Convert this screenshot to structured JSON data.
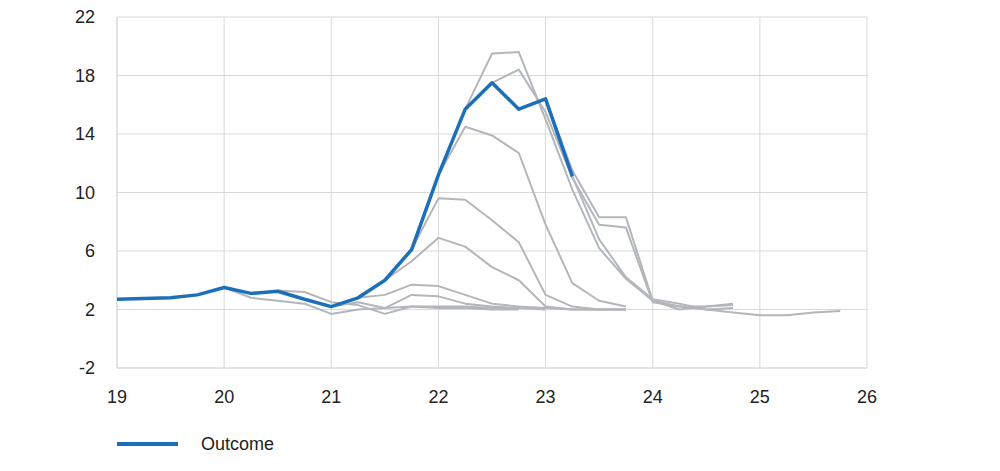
{
  "chart_data": {
    "type": "line",
    "x": [
      19,
      19.25,
      19.5,
      19.75,
      20,
      20.25,
      20.5,
      20.75,
      21,
      21.25,
      21.5,
      21.75,
      22,
      22.25,
      22.5,
      22.75,
      23,
      23.25,
      23.5,
      23.75,
      24,
      24.25,
      24.5,
      24.75,
      25,
      25.25,
      25.5,
      25.75
    ],
    "xlim": [
      19,
      26
    ],
    "xticks": [
      19,
      20,
      21,
      22,
      23,
      24,
      25,
      26
    ],
    "ylim": [
      -2,
      22
    ],
    "yticks": [
      -2,
      2,
      6,
      10,
      14,
      18,
      22
    ],
    "grid": true,
    "legend": "bottom",
    "series": [
      {
        "color": "#b3b6ba",
        "values": [
          null,
          null,
          null,
          null,
          3.5,
          2.8,
          2.6,
          2.4,
          1.7,
          2.0,
          2.1,
          2.2,
          2.1,
          2.1,
          2.0,
          2.0,
          null,
          null,
          null,
          null,
          null,
          null,
          null,
          null,
          null,
          null,
          null,
          null
        ]
      },
      {
        "color": "#b3b6ba",
        "values": [
          null,
          null,
          null,
          null,
          null,
          null,
          3.3,
          3.2,
          2.5,
          2.3,
          1.7,
          2.2,
          2.2,
          2.2,
          2.1,
          2.1,
          null,
          null,
          null,
          null,
          null,
          null,
          null,
          null,
          null,
          null,
          null,
          null
        ]
      },
      {
        "color": "#b3b6ba",
        "values": [
          null,
          null,
          null,
          null,
          null,
          null,
          null,
          null,
          2.2,
          2.5,
          2.1,
          3.0,
          2.9,
          2.4,
          2.2,
          2.1,
          2.0,
          null,
          null,
          null,
          null,
          null,
          null,
          null,
          null,
          null,
          null,
          null
        ]
      },
      {
        "color": "#b3b6ba",
        "values": [
          null,
          null,
          null,
          null,
          null,
          null,
          null,
          null,
          null,
          2.8,
          3.0,
          3.7,
          3.6,
          3.0,
          2.4,
          2.2,
          2.1,
          2.0,
          2.0,
          2.0,
          null,
          null,
          null,
          null,
          null,
          null,
          null,
          null
        ]
      },
      {
        "color": "#b3b6ba",
        "values": [
          null,
          null,
          null,
          null,
          null,
          null,
          null,
          null,
          null,
          null,
          4.0,
          5.3,
          6.9,
          6.3,
          4.9,
          4.0,
          2.2,
          2.0,
          2.0,
          2.0,
          null,
          null,
          null,
          null,
          null,
          null,
          null,
          null
        ]
      },
      {
        "color": "#b3b6ba",
        "values": [
          null,
          null,
          null,
          null,
          null,
          null,
          null,
          null,
          null,
          null,
          null,
          6.1,
          9.6,
          9.5,
          8.1,
          6.6,
          3.0,
          2.2,
          2.0,
          2.0,
          null,
          null,
          null,
          null,
          null,
          null,
          null,
          null
        ]
      },
      {
        "color": "#b3b6ba",
        "values": [
          null,
          null,
          null,
          null,
          null,
          null,
          null,
          null,
          null,
          null,
          null,
          null,
          11.2,
          14.5,
          13.9,
          12.7,
          7.8,
          3.8,
          2.6,
          2.2,
          null,
          null,
          null,
          null,
          null,
          null,
          null,
          null
        ]
      },
      {
        "color": "#b3b6ba",
        "values": [
          null,
          null,
          null,
          null,
          null,
          null,
          null,
          null,
          null,
          null,
          null,
          null,
          null,
          15.7,
          19.5,
          19.6,
          15.0,
          10.2,
          6.2,
          4.1,
          2.6,
          2.2,
          2.0,
          2.1,
          null,
          null,
          null,
          null
        ]
      },
      {
        "color": "#b3b6ba",
        "values": [
          null,
          null,
          null,
          null,
          null,
          null,
          null,
          null,
          null,
          null,
          null,
          null,
          null,
          null,
          17.5,
          18.4,
          15.5,
          11.0,
          7.8,
          7.6,
          2.5,
          2.2,
          2.2,
          2.3,
          null,
          null,
          null,
          null
        ]
      },
      {
        "color": "#b3b6ba",
        "values": [
          null,
          null,
          null,
          null,
          null,
          null,
          null,
          null,
          null,
          null,
          null,
          null,
          null,
          null,
          null,
          null,
          16.4,
          11.5,
          8.3,
          8.3,
          2.6,
          2.0,
          2.2,
          2.4,
          null,
          null,
          null,
          null
        ]
      },
      {
        "color": "#b3b6ba",
        "values": [
          null,
          null,
          null,
          null,
          null,
          null,
          null,
          null,
          null,
          null,
          null,
          null,
          null,
          null,
          null,
          null,
          null,
          11.1,
          6.8,
          4.2,
          2.7,
          2.4,
          2.0,
          1.8,
          1.6,
          1.6,
          1.8,
          1.9
        ]
      },
      {
        "name": "Outcome",
        "color": "#1d6fb8",
        "values": [
          2.7,
          2.75,
          2.8,
          3.0,
          3.5,
          3.1,
          3.25,
          2.7,
          2.2,
          2.8,
          4.0,
          6.1,
          11.2,
          15.7,
          17.5,
          15.7,
          16.4,
          11.1,
          null,
          null,
          null,
          null,
          null,
          null,
          null,
          null,
          null,
          null
        ]
      }
    ]
  }
}
